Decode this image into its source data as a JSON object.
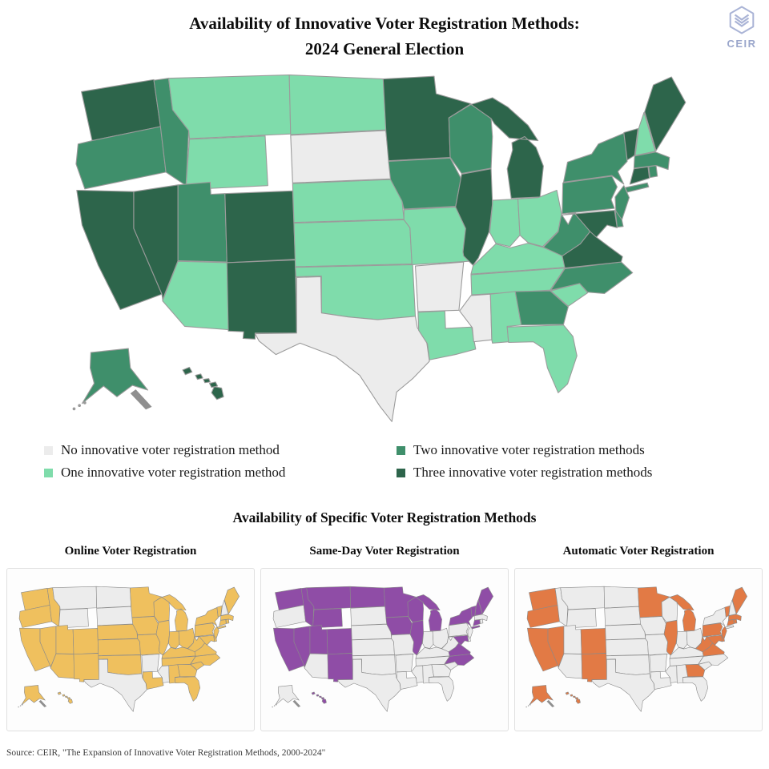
{
  "header": {
    "title_line1": "Availability of Innovative Voter Registration Methods:",
    "title_line2": "2024 General Election",
    "logo_text": "CEIR"
  },
  "legend": {
    "items": [
      {
        "label": "No innovative voter registration method",
        "color": "#ececec"
      },
      {
        "label": "One innovative voter registration method",
        "color": "#7fdcab"
      },
      {
        "label": "Two innovative voter registration methods",
        "color": "#3f8f6b"
      },
      {
        "label": "Three innovative voter registration methods",
        "color": "#2d654b"
      }
    ]
  },
  "section": {
    "title": "Availability of Specific Voter Registration Methods"
  },
  "mini_maps": [
    {
      "title": "Online Voter Registration",
      "field": "online",
      "color": "#efc05e"
    },
    {
      "title": "Same-Day Voter Registration",
      "field": "same_day",
      "color": "#8f4da6"
    },
    {
      "title": "Automatic Voter Registration",
      "field": "automatic",
      "color": "#e27a45"
    }
  ],
  "footer": {
    "source": "Source: CEIR, \"The Expansion of Innovative Voter Registration Methods, 2000-2024\""
  },
  "chart_data": {
    "type": "choropleth",
    "title": "Availability of Innovative Voter Registration Methods: 2024 General Election",
    "subtitle_maps": [
      "Online Voter Registration",
      "Same-Day Voter Registration",
      "Automatic Voter Registration"
    ],
    "legend_categories": [
      "No innovative voter registration method",
      "One innovative voter registration method",
      "Two innovative voter registration methods",
      "Three innovative voter registration methods"
    ],
    "palette": {
      "0": "#ececec",
      "1": "#7fdcab",
      "2": "#3f8f6b",
      "3": "#2d654b"
    },
    "inactive_color": "#ececec",
    "states": {
      "WA": {
        "name": "Washington",
        "methods": 3,
        "online": true,
        "same_day": true,
        "automatic": true
      },
      "OR": {
        "name": "Oregon",
        "methods": 2,
        "online": true,
        "same_day": false,
        "automatic": true
      },
      "CA": {
        "name": "California",
        "methods": 3,
        "online": true,
        "same_day": true,
        "automatic": true
      },
      "NV": {
        "name": "Nevada",
        "methods": 3,
        "online": true,
        "same_day": true,
        "automatic": true
      },
      "ID": {
        "name": "Idaho",
        "methods": 2,
        "online": true,
        "same_day": true,
        "automatic": false
      },
      "MT": {
        "name": "Montana",
        "methods": 1,
        "online": false,
        "same_day": true,
        "automatic": false
      },
      "WY": {
        "name": "Wyoming",
        "methods": 1,
        "online": false,
        "same_day": true,
        "automatic": false
      },
      "UT": {
        "name": "Utah",
        "methods": 2,
        "online": true,
        "same_day": true,
        "automatic": false
      },
      "CO": {
        "name": "Colorado",
        "methods": 3,
        "online": true,
        "same_day": true,
        "automatic": true
      },
      "AZ": {
        "name": "Arizona",
        "methods": 1,
        "online": true,
        "same_day": false,
        "automatic": false
      },
      "NM": {
        "name": "New Mexico",
        "methods": 3,
        "online": true,
        "same_day": true,
        "automatic": true
      },
      "ND": {
        "name": "North Dakota",
        "methods": 1,
        "online": false,
        "same_day": true,
        "automatic": false
      },
      "SD": {
        "name": "South Dakota",
        "methods": 0,
        "online": false,
        "same_day": false,
        "automatic": false
      },
      "NE": {
        "name": "Nebraska",
        "methods": 1,
        "online": true,
        "same_day": false,
        "automatic": false
      },
      "KS": {
        "name": "Kansas",
        "methods": 1,
        "online": true,
        "same_day": false,
        "automatic": false
      },
      "OK": {
        "name": "Oklahoma",
        "methods": 1,
        "online": true,
        "same_day": false,
        "automatic": false
      },
      "TX": {
        "name": "Texas",
        "methods": 0,
        "online": false,
        "same_day": false,
        "automatic": false
      },
      "MN": {
        "name": "Minnesota",
        "methods": 3,
        "online": true,
        "same_day": true,
        "automatic": true
      },
      "IA": {
        "name": "Iowa",
        "methods": 2,
        "online": true,
        "same_day": true,
        "automatic": false
      },
      "MO": {
        "name": "Missouri",
        "methods": 1,
        "online": true,
        "same_day": false,
        "automatic": false
      },
      "AR": {
        "name": "Arkansas",
        "methods": 0,
        "online": false,
        "same_day": false,
        "automatic": false
      },
      "LA": {
        "name": "Louisiana",
        "methods": 1,
        "online": true,
        "same_day": false,
        "automatic": false
      },
      "MS": {
        "name": "Mississippi",
        "methods": 0,
        "online": false,
        "same_day": false,
        "automatic": false
      },
      "WI": {
        "name": "Wisconsin",
        "methods": 2,
        "online": true,
        "same_day": true,
        "automatic": false
      },
      "IL": {
        "name": "Illinois",
        "methods": 3,
        "online": true,
        "same_day": true,
        "automatic": true
      },
      "IN": {
        "name": "Indiana",
        "methods": 1,
        "online": true,
        "same_day": false,
        "automatic": false
      },
      "MI": {
        "name": "Michigan",
        "methods": 3,
        "online": true,
        "same_day": true,
        "automatic": true
      },
      "OH": {
        "name": "Ohio",
        "methods": 1,
        "online": true,
        "same_day": false,
        "automatic": false
      },
      "KY": {
        "name": "Kentucky",
        "methods": 1,
        "online": true,
        "same_day": false,
        "automatic": false
      },
      "TN": {
        "name": "Tennessee",
        "methods": 1,
        "online": true,
        "same_day": false,
        "automatic": false
      },
      "AL": {
        "name": "Alabama",
        "methods": 1,
        "online": true,
        "same_day": false,
        "automatic": false
      },
      "GA": {
        "name": "Georgia",
        "methods": 2,
        "online": true,
        "same_day": false,
        "automatic": true
      },
      "FL": {
        "name": "Florida",
        "methods": 1,
        "online": true,
        "same_day": false,
        "automatic": false
      },
      "SC": {
        "name": "South Carolina",
        "methods": 1,
        "online": true,
        "same_day": false,
        "automatic": false
      },
      "NC": {
        "name": "North Carolina",
        "methods": 2,
        "online": true,
        "same_day": true,
        "automatic": false
      },
      "VA": {
        "name": "Virginia",
        "methods": 3,
        "online": true,
        "same_day": true,
        "automatic": true
      },
      "WV": {
        "name": "West Virginia",
        "methods": 2,
        "online": true,
        "same_day": false,
        "automatic": true
      },
      "PA": {
        "name": "Pennsylvania",
        "methods": 2,
        "online": true,
        "same_day": false,
        "automatic": true
      },
      "MD": {
        "name": "Maryland",
        "methods": 3,
        "online": true,
        "same_day": true,
        "automatic": true
      },
      "DE": {
        "name": "Delaware",
        "methods": 2,
        "online": true,
        "same_day": false,
        "automatic": true
      },
      "NJ": {
        "name": "New Jersey",
        "methods": 2,
        "online": true,
        "same_day": false,
        "automatic": true
      },
      "NY": {
        "name": "New York",
        "methods": 2,
        "online": true,
        "same_day": true,
        "automatic": false
      },
      "CT": {
        "name": "Connecticut",
        "methods": 3,
        "online": true,
        "same_day": true,
        "automatic": true
      },
      "RI": {
        "name": "Rhode Island",
        "methods": 2,
        "online": true,
        "same_day": false,
        "automatic": true
      },
      "MA": {
        "name": "Massachusetts",
        "methods": 2,
        "online": true,
        "same_day": false,
        "automatic": true
      },
      "VT": {
        "name": "Vermont",
        "methods": 3,
        "online": true,
        "same_day": true,
        "automatic": true
      },
      "NH": {
        "name": "New Hampshire",
        "methods": 1,
        "online": false,
        "same_day": true,
        "automatic": false
      },
      "ME": {
        "name": "Maine",
        "methods": 3,
        "online": true,
        "same_day": true,
        "automatic": true
      },
      "AK": {
        "name": "Alaska",
        "methods": 2,
        "online": true,
        "same_day": false,
        "automatic": true
      },
      "HI": {
        "name": "Hawaii",
        "methods": 3,
        "online": true,
        "same_day": true,
        "automatic": true
      }
    }
  }
}
